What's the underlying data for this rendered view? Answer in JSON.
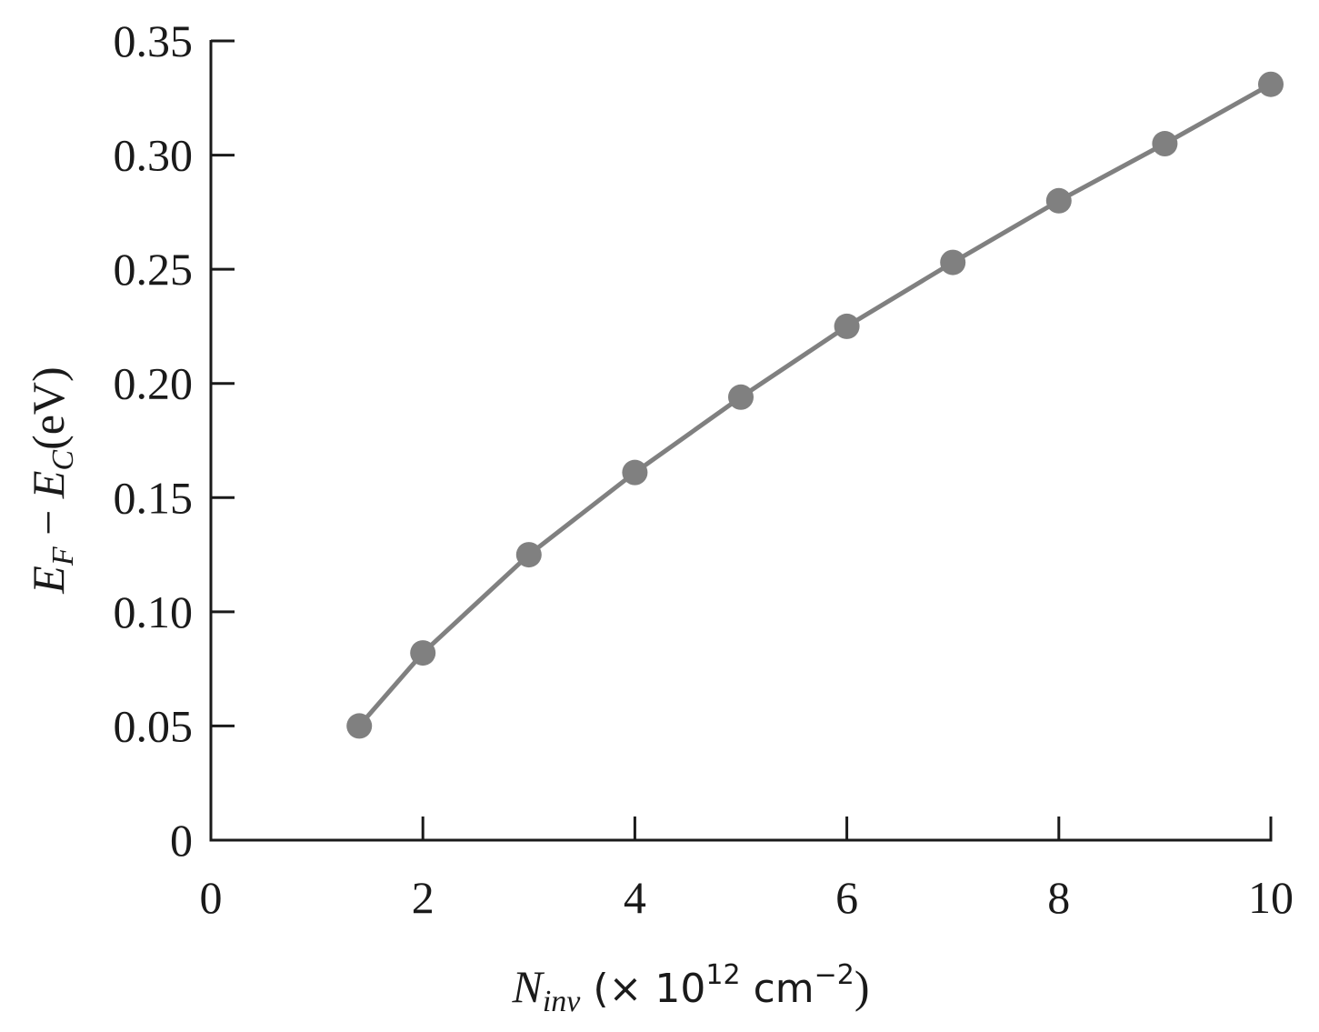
{
  "chart_data": {
    "type": "line",
    "x": [
      1.4,
      2,
      3,
      4,
      5,
      6,
      7,
      8,
      9,
      10
    ],
    "series": [
      {
        "values": [
          0.05,
          0.082,
          0.125,
          0.161,
          0.194,
          0.225,
          0.253,
          0.28,
          0.305,
          0.331
        ],
        "color": "#808080"
      }
    ],
    "xlim": [
      0,
      10
    ],
    "ylim": [
      0,
      0.35
    ],
    "xticks": [
      "0",
      "2",
      "4",
      "6",
      "8",
      "10"
    ],
    "yticks": [
      "0",
      "0.05",
      "0.10",
      "0.15",
      "0.20",
      "0.25",
      "0.30",
      "0.35"
    ],
    "xlabel": {
      "symbol": "N",
      "subscript": "inv",
      "rest": " (× 10",
      "exp": "12",
      "rest2": " cm",
      "exp2": "−2",
      "close": ")"
    },
    "ylabel": {
      "e1": "E",
      "s1": "F",
      "minus": " − ",
      "e2": "E",
      "s2": "C",
      "unit": "(eV)"
    },
    "grid": false,
    "legend": "none"
  }
}
